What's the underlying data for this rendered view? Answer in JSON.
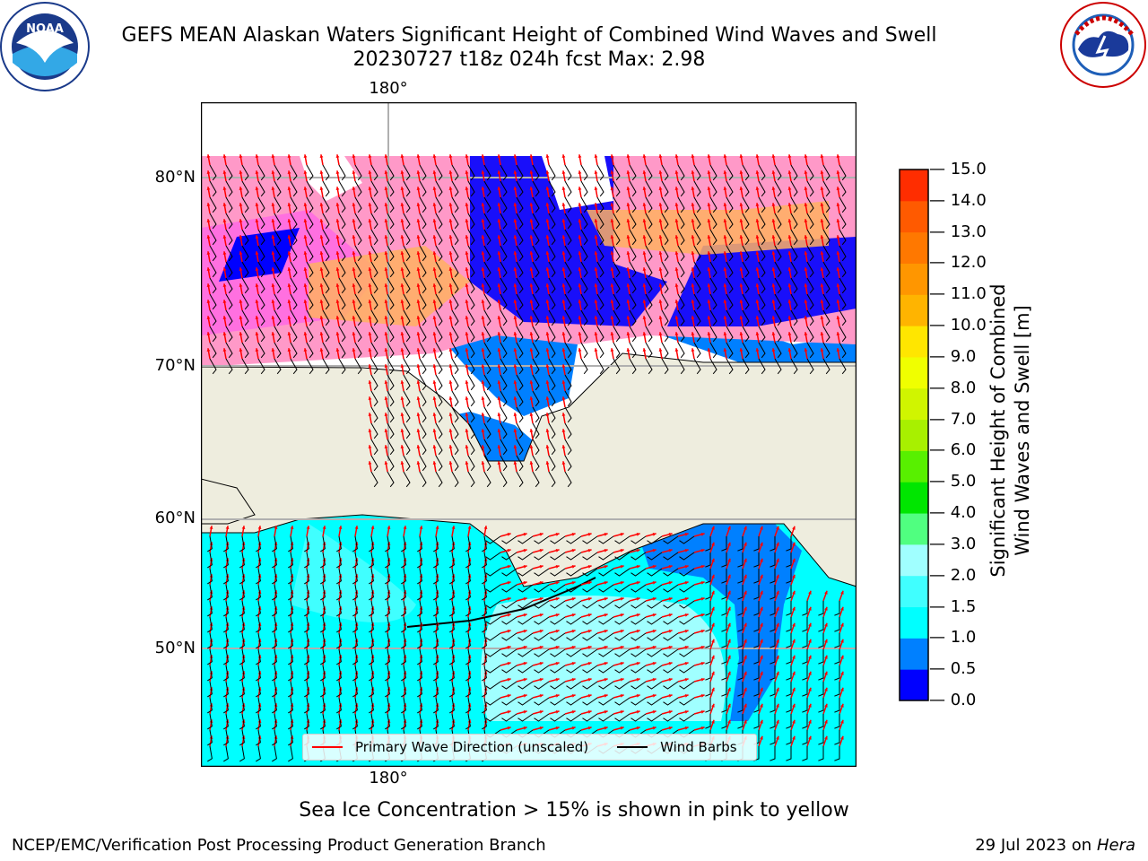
{
  "header": {
    "title_line1": "GEFS MEAN Alaskan Waters Significant Height of Combined Wind Waves and Swell",
    "title_line2": "20230727 t18z 024h fcst   Max: 2.98"
  },
  "logos": {
    "noaa_left": {
      "text": "NOAA",
      "ring_text": "NATIONAL OCEANIC AND ATMOSPHERIC ADMINISTRATION · U.S. DEPARTMENT OF COMMERCE",
      "icon": "noaa-logo"
    },
    "nws_right": {
      "ring_text": "NATIONAL WEATHER SERVICE",
      "icon": "nws-logo"
    }
  },
  "map": {
    "lon_labels": [
      "180°",
      "180°"
    ],
    "lat_labels": [
      "80°N",
      "70°N",
      "60°N",
      "50°N"
    ],
    "colors": {
      "land": "#eeedde",
      "grid": "#b0b0b0",
      "wave_arrow": "#ff0000",
      "wind_barb": "#000000"
    }
  },
  "legend": {
    "primary_wave": "Primary Wave Direction (unscaled)",
    "wind_barbs": "Wind Barbs"
  },
  "colorbar": {
    "title_line1": "Significant Height of Combined",
    "title_line2": "Wind Waves and Swell [m]",
    "ticks": [
      "15.0",
      "14.0",
      "13.0",
      "12.0",
      "11.0",
      "10.0",
      "9.0",
      "8.0",
      "7.0",
      "6.0",
      "5.0",
      "4.0",
      "3.0",
      "2.0",
      "1.5",
      "1.0",
      "0.5",
      "0.0"
    ],
    "colors": [
      "#0000ff",
      "#0080ff",
      "#00ffff",
      "#40ffff",
      "#a0ffff",
      "#50ff80",
      "#00e600",
      "#58f000",
      "#a8f000",
      "#d0f500",
      "#f0ff00",
      "#ffe600",
      "#ffb400",
      "#ff9600",
      "#ff7800",
      "#ff5a00",
      "#ff2d00",
      "#ff0000"
    ]
  },
  "notes": {
    "ice": "Sea Ice Concentration > 15% is shown in pink to yellow"
  },
  "footer": {
    "left": "NCEP/EMC/Verification Post Processing Product Generation Branch",
    "right_date": "29 Jul 2023 on ",
    "right_machine": "Hera"
  }
}
